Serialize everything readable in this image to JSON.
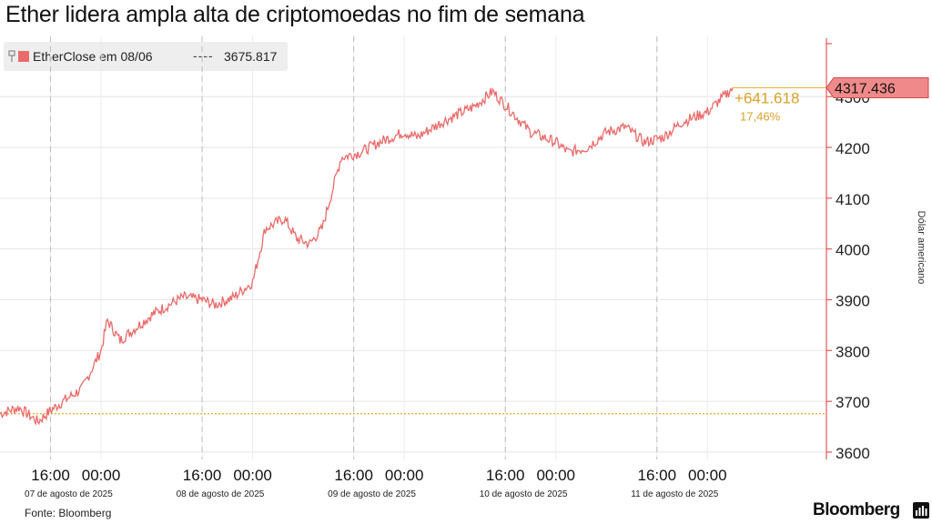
{
  "title": "Ether lidera ampla alta de criptomoedas no fim de semana",
  "legend": {
    "series_label": "EtherClose em 08/06",
    "ref_dash": "----",
    "ref_value": "3675.817"
  },
  "source": "Fonte: Bloomberg",
  "brand": "Bloomberg",
  "colors": {
    "series": "#ea6b6b",
    "reference": "#e5b43c",
    "change": "#d9a12a",
    "axis": "#e45a5a"
  },
  "icons": [
    "pin-icon",
    "bloomberg-terminal-icon"
  ],
  "chart_data": {
    "type": "line",
    "title": "Ether lidera ampla alta de criptomoedas no fim de semana",
    "ylabel": "Dólar americano",
    "ylim": [
      3580,
      4360
    ],
    "yticks": [
      3600,
      3700,
      3800,
      3900,
      4000,
      4100,
      4200,
      4300
    ],
    "grid": true,
    "legend_position": "top-left",
    "x_tick_labels": [
      "16:00",
      "00:00",
      "16:00",
      "00:00",
      "16:00",
      "00:00",
      "16:00",
      "00:00",
      "16:00",
      "00:00"
    ],
    "date_labels": [
      "07 de agosto de 2025",
      "08 de agosto de 2025",
      "09 de agosto de 2025",
      "10 de agosto de 2025",
      "11 de agosto de 2025"
    ],
    "series": [
      {
        "name": "EtherClose em 08/06",
        "x": [
          "2025-08-06T08:00",
          "2025-08-06T11:00",
          "2025-08-06T14:00",
          "2025-08-06T16:00",
          "2025-08-06T18:00",
          "2025-08-06T21:00",
          "2025-08-07T00:00",
          "2025-08-07T01:00",
          "2025-08-07T03:00",
          "2025-08-07T05:00",
          "2025-08-07T08:00",
          "2025-08-07T10:00",
          "2025-08-07T13:00",
          "2025-08-07T16:00",
          "2025-08-07T18:00",
          "2025-08-07T21:00",
          "2025-08-08T00:00",
          "2025-08-08T02:00",
          "2025-08-08T05:00",
          "2025-08-08T07:00",
          "2025-08-08T09:00",
          "2025-08-08T11:00",
          "2025-08-08T14:00",
          "2025-08-08T17:00",
          "2025-08-08T20:00",
          "2025-08-09T00:00",
          "2025-08-09T02:00",
          "2025-08-09T06:00",
          "2025-08-09T11:00",
          "2025-08-09T14:00",
          "2025-08-09T17:00",
          "2025-08-09T20:00",
          "2025-08-10T00:00",
          "2025-08-10T02:00",
          "2025-08-10T05:00",
          "2025-08-10T08:00",
          "2025-08-10T11:00",
          "2025-08-10T14:00",
          "2025-08-10T17:00",
          "2025-08-10T20:00",
          "2025-08-11T00:00",
          "2025-08-11T03:00",
          "2025-08-11T04:00"
        ],
        "values": [
          3676,
          3688,
          3660,
          3682,
          3700,
          3725,
          3800,
          3860,
          3820,
          3840,
          3870,
          3885,
          3905,
          3900,
          3890,
          3905,
          3935,
          4040,
          4060,
          4020,
          4010,
          4040,
          4180,
          4190,
          4210,
          4230,
          4220,
          4250,
          4280,
          4310,
          4270,
          4230,
          4210,
          4190,
          4200,
          4230,
          4240,
          4210,
          4220,
          4250,
          4270,
          4305,
          4317.436
        ]
      }
    ],
    "reference_line": {
      "value": 3675.817,
      "label": "3675.817"
    },
    "last_value": {
      "value": 4317.436,
      "label": "4317.436"
    },
    "change": {
      "absolute": "+641.618",
      "percent": "17,46%"
    }
  }
}
